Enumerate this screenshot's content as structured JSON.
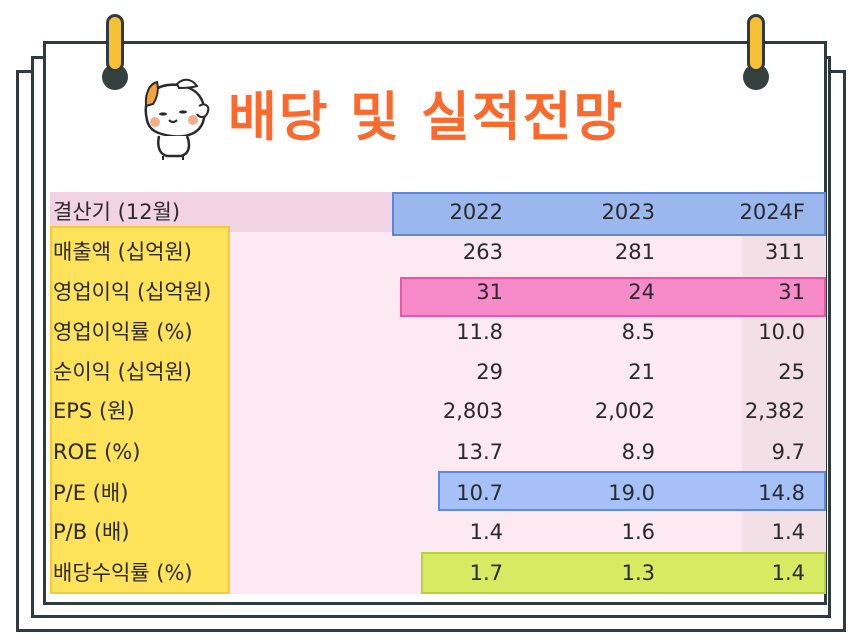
{
  "title": "배당 및 실적전망",
  "colors": {
    "title": "#fb6a2c",
    "pin": "#f6c134",
    "frame": "#2f3b3f",
    "table_bg": "#fde9f1",
    "header_highlight": "#9ab7ee",
    "label_column": "#fee25a",
    "pink_highlight": "#f78ac8",
    "blue_highlight": "#a5c1f7",
    "green_highlight": "#d6ea62"
  },
  "icons": [
    "pin-icon",
    "cat-mascot-icon"
  ],
  "table": {
    "header": {
      "label": "결산기 (12월)",
      "values": [
        "2022",
        "2023",
        "2024F"
      ]
    },
    "rows": [
      {
        "label": "매출액 (십억원)",
        "values": [
          "263",
          "281",
          "311"
        ]
      },
      {
        "label": "영업이익 (십억원)",
        "values": [
          "31",
          "24",
          "31"
        ]
      },
      {
        "label": "영업이익률 (%)",
        "values": [
          "11.8",
          "8.5",
          "10.0"
        ]
      },
      {
        "label": "순이익 (십억원)",
        "values": [
          "29",
          "21",
          "25"
        ]
      },
      {
        "label": "EPS (원)",
        "values": [
          "2,803",
          "2,002",
          "2,382"
        ]
      },
      {
        "label": "ROE (%)",
        "values": [
          "13.7",
          "8.9",
          "9.7"
        ]
      },
      {
        "label": "P/E (배)",
        "values": [
          "10.7",
          "19.0",
          "14.8"
        ]
      },
      {
        "label": "P/B (배)",
        "values": [
          "1.4",
          "1.6",
          "1.4"
        ]
      },
      {
        "label": "배당수익률 (%)",
        "values": [
          "1.7",
          "1.3",
          "1.4"
        ]
      }
    ]
  }
}
